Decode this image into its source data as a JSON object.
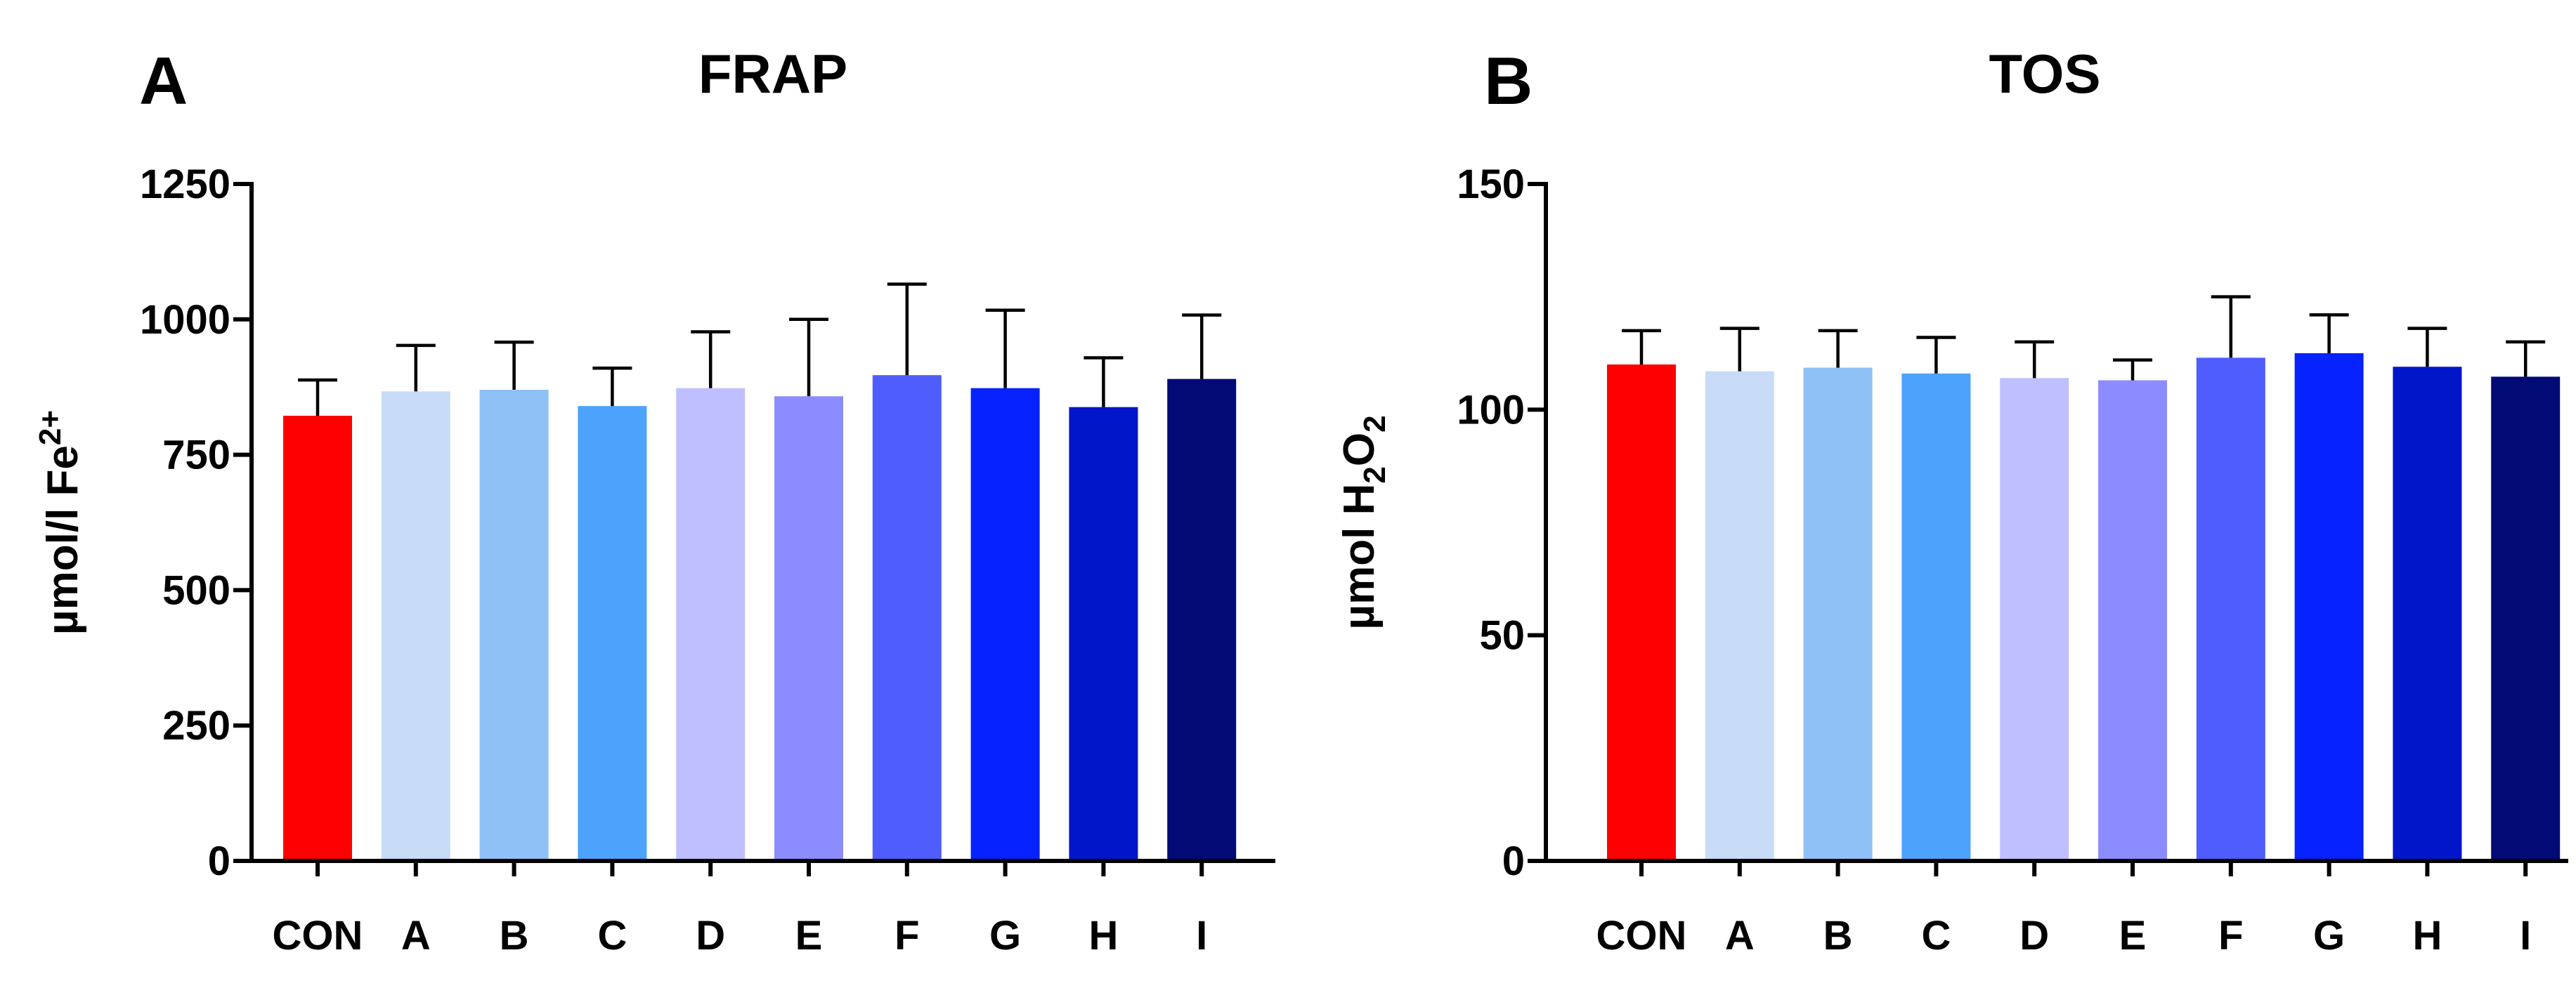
{
  "chart_data": [
    {
      "type": "bar",
      "panel": "A",
      "title": "FRAP",
      "ylabel": {
        "main": "µmol/l Fe",
        "superscript": "2+"
      },
      "xlabel": "",
      "ylim": [
        0,
        1250
      ],
      "yticks": [
        0,
        250,
        500,
        750,
        1000,
        1250
      ],
      "categories": [
        "CON",
        "A",
        "B",
        "C",
        "D",
        "E",
        "F",
        "G",
        "H",
        "I"
      ],
      "values": [
        822,
        867,
        870,
        840,
        873,
        858,
        897,
        873,
        838,
        890
      ],
      "error_upper": [
        888,
        952,
        958,
        910,
        977,
        1000,
        1065,
        1017,
        929,
        1008
      ],
      "colors": [
        "#ff0000",
        "#c8dcf8",
        "#8fc0f6",
        "#4da2fb",
        "#bfbfff",
        "#8c8cff",
        "#4e5dfc",
        "#0522ff",
        "#0016c8",
        "#020a76"
      ],
      "grid": false,
      "legend": "none"
    },
    {
      "type": "bar",
      "panel": "B",
      "title": "TOS",
      "ylabel": {
        "main": "µmol H",
        "sub1": "2",
        "mid": "O",
        "sub2": "2"
      },
      "xlabel": "",
      "ylim": [
        0,
        150
      ],
      "yticks": [
        0,
        50,
        100,
        150
      ],
      "categories": [
        "CON",
        "A",
        "B",
        "C",
        "D",
        "E",
        "F",
        "G",
        "H",
        "I"
      ],
      "values": [
        110,
        108.5,
        109.3,
        108,
        107,
        106.5,
        111.5,
        112.5,
        109.5,
        107.3
      ],
      "error_upper": [
        117.5,
        118,
        117.5,
        116,
        115,
        111,
        125,
        121,
        118,
        115
      ],
      "colors": [
        "#ff0000",
        "#c8dcf8",
        "#8fc0f6",
        "#4da2fb",
        "#bfbfff",
        "#8c8cff",
        "#4e5dfc",
        "#0522ff",
        "#0016c8",
        "#020a76"
      ],
      "grid": false,
      "legend": "none"
    }
  ]
}
